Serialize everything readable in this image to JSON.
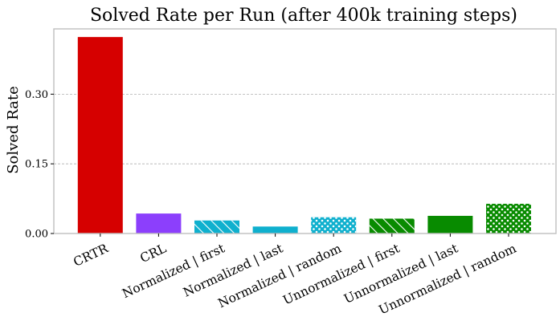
{
  "chart_data": {
    "type": "bar",
    "title": "Solved Rate per Run (after 400k training steps)",
    "xlabel": "",
    "ylabel": "Solved Rate",
    "ylim": [
      0,
      0.425
    ],
    "yticks": [
      0.0,
      0.15,
      0.3
    ],
    "ytick_labels": [
      "0.00",
      "0.15",
      "0.30"
    ],
    "grid": "y-dashed",
    "legend": "none",
    "categories": [
      "CRTR",
      "CRL",
      "Normalized | first",
      "Normalized | last",
      "Normalized | random",
      "Unnormalized | first",
      "Unnormalized | last",
      "Unnormalized | random"
    ],
    "values": [
      0.423,
      0.043,
      0.028,
      0.015,
      0.035,
      0.032,
      0.038,
      0.064
    ],
    "colors": [
      "#d60000",
      "#8c3ffc",
      "#0fb0ce",
      "#0fb0ce",
      "#0fb0ce",
      "#088b00",
      "#088b00",
      "#088b00"
    ],
    "hatches": [
      "none",
      "none",
      "diagonal",
      "none",
      "dots",
      "diagonal",
      "none",
      "dots"
    ]
  }
}
